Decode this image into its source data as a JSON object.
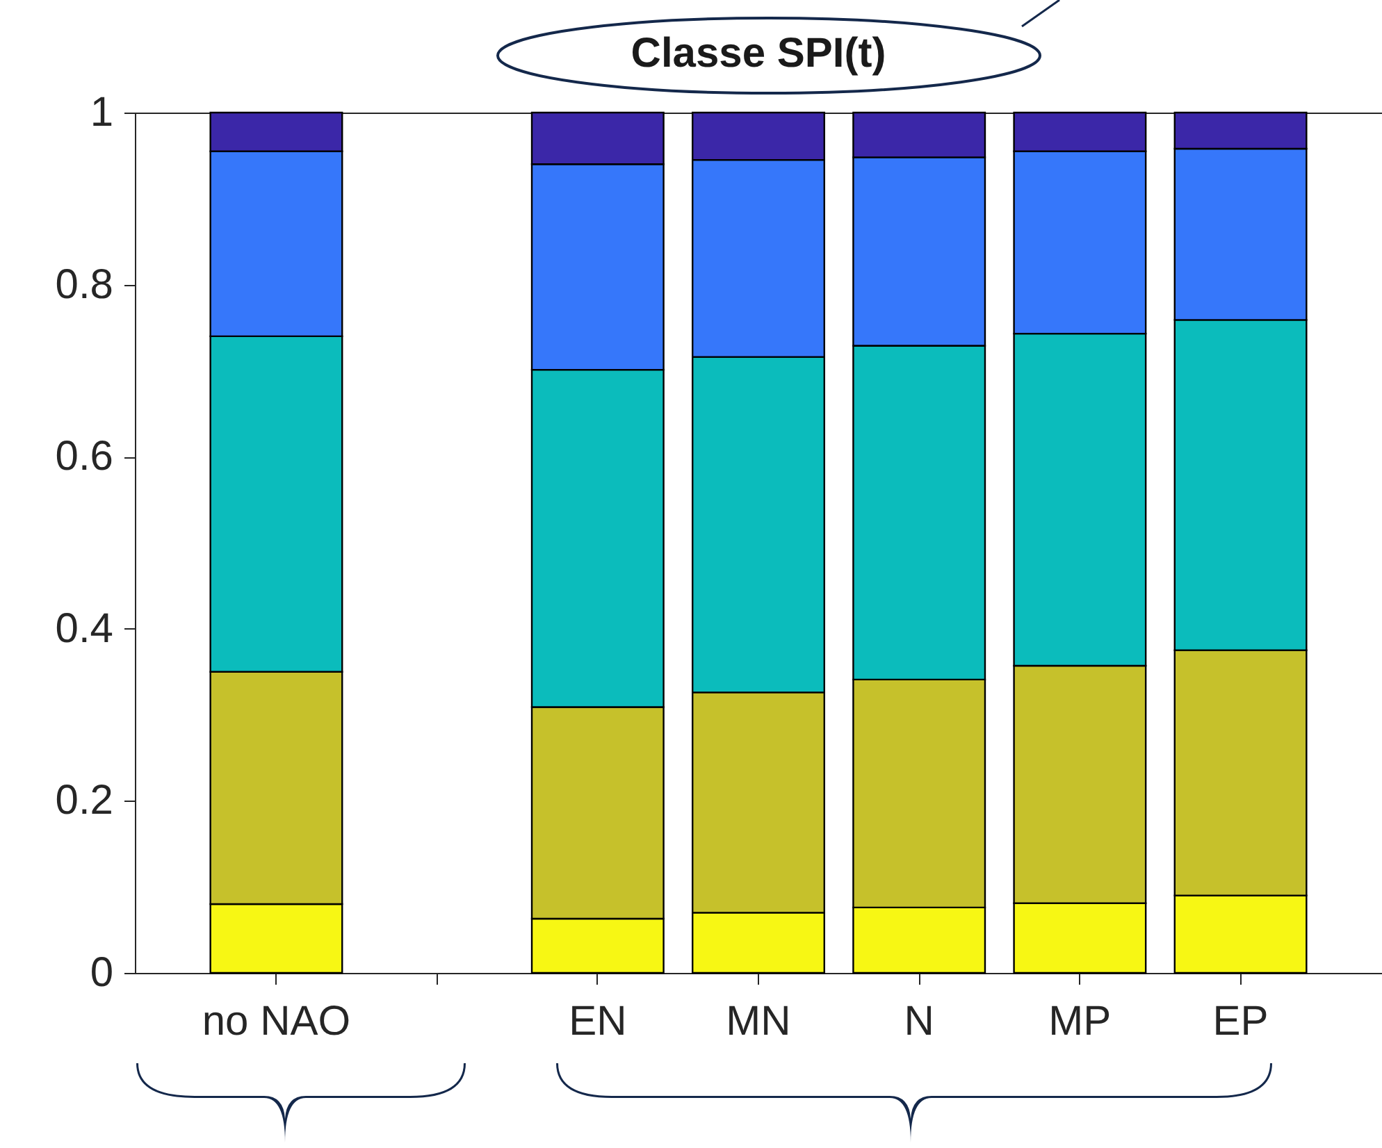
{
  "chart_data": {
    "type": "bar",
    "title": "Classe SPI(t)",
    "categories": [
      "no NAO",
      null,
      "EN",
      "MN",
      "N",
      "MP",
      "EP"
    ],
    "stacked": true,
    "series": [
      {
        "color": "#f7f714",
        "values": [
          0.08,
          null,
          0.063,
          0.07,
          0.076,
          0.081,
          0.09
        ]
      },
      {
        "color": "#c6c12b",
        "values": [
          0.27,
          null,
          0.246,
          0.256,
          0.265,
          0.276,
          0.285
        ]
      },
      {
        "color": "#0bbcbc",
        "values": [
          0.39,
          null,
          0.392,
          0.39,
          0.388,
          0.386,
          0.384
        ]
      },
      {
        "color": "#3677fa",
        "values": [
          0.215,
          null,
          0.239,
          0.229,
          0.219,
          0.212,
          0.199
        ]
      },
      {
        "color": "#3b27a8",
        "values": [
          0.045,
          null,
          0.06,
          0.055,
          0.052,
          0.045,
          0.042
        ]
      }
    ],
    "ylim": [
      0,
      1
    ],
    "yticks": [
      0,
      0.2,
      0.4,
      0.6,
      0.8,
      1
    ]
  }
}
